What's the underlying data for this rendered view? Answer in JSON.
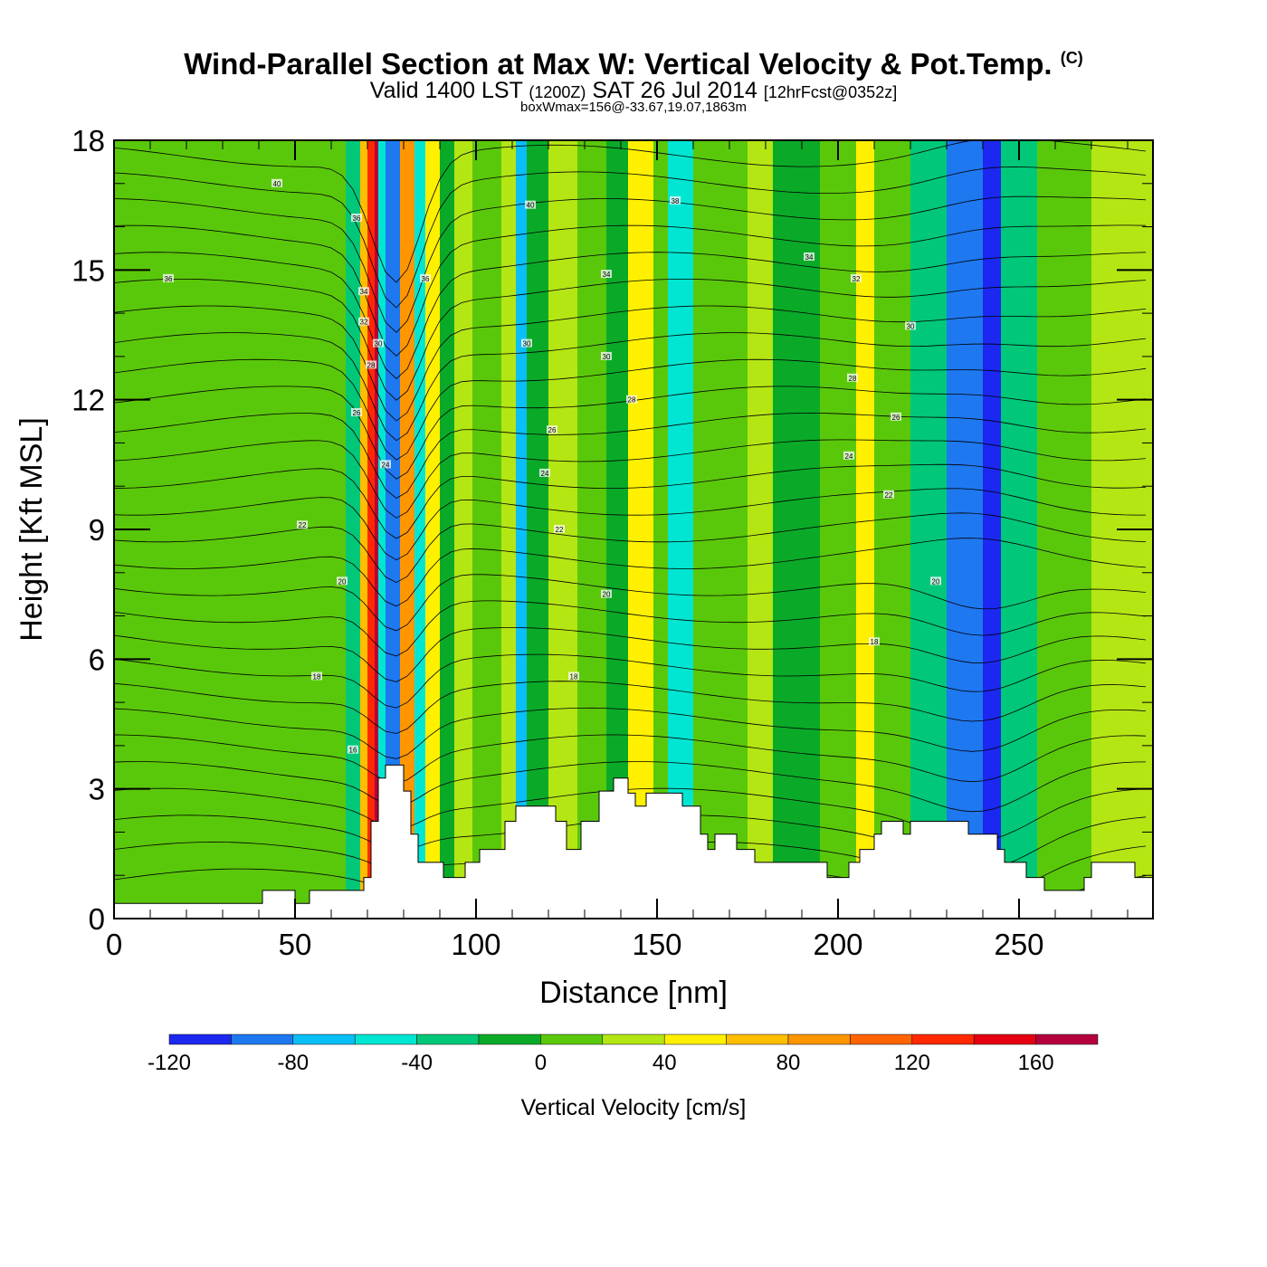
{
  "header": {
    "title": "Wind-Parallel Section at Max W: Vertical Velocity & Pot.Temp.",
    "title_mark": "(C)",
    "subtitle_valid": "Valid 1400 LST",
    "subtitle_z": "(1200Z)",
    "subtitle_date": "SAT 26 Jul 2014",
    "subtitle_fcst": "[12hrFcst@0352z]",
    "box_info": "boxWmax=156@-33.67,19.07,1863m"
  },
  "chart_data": {
    "type": "heatmap",
    "xlabel": "Distance [nm]",
    "ylabel": "Height [Kft MSL]",
    "xlim": [
      0,
      287
    ],
    "ylim": [
      0,
      18
    ],
    "x_ticks": [
      0,
      50,
      100,
      150,
      200,
      250
    ],
    "y_ticks": [
      0,
      3,
      6,
      9,
      12,
      15,
      18
    ],
    "colorbar": {
      "title": "Vertical Velocity [cm/s]",
      "levels": [
        -120,
        -100,
        -80,
        -60,
        -40,
        -20,
        0,
        20,
        40,
        60,
        80,
        100,
        120,
        140,
        160,
        180
      ],
      "colors": [
        "#1c28f0",
        "#1e78f0",
        "#0abef8",
        "#00e6d2",
        "#00c878",
        "#0aaa28",
        "#5ac80a",
        "#b4e614",
        "#fff000",
        "#ffbe00",
        "#ff9600",
        "#ff6400",
        "#ff2800",
        "#e60012",
        "#b4003c"
      ],
      "labels": [
        -120,
        -80,
        -40,
        0,
        40,
        80,
        120,
        160
      ]
    },
    "velocity_columns": [
      {
        "x": [
          0,
          60
        ],
        "w": 5
      },
      {
        "x": [
          60,
          70
        ],
        "w": 10
      },
      {
        "x": [
          64,
          69
        ],
        "w": -35
      },
      {
        "x": [
          68,
          72
        ],
        "w": 60
      },
      {
        "x": [
          70,
          76
        ],
        "w": 130
      },
      {
        "x": [
          72,
          75
        ],
        "w": 160
      },
      {
        "x": [
          73,
          77
        ],
        "w": -50
      },
      {
        "x": [
          75,
          79
        ],
        "w": -100
      },
      {
        "x": [
          79,
          83
        ],
        "w": 80
      },
      {
        "x": [
          83,
          86
        ],
        "w": -45
      },
      {
        "x": [
          86,
          90
        ],
        "w": 45
      },
      {
        "x": [
          90,
          94
        ],
        "w": -15
      },
      {
        "x": [
          94,
          99
        ],
        "w": 25
      },
      {
        "x": [
          99,
          107
        ],
        "w": 5
      },
      {
        "x": [
          107,
          111
        ],
        "w": 30
      },
      {
        "x": [
          111,
          114
        ],
        "w": -80
      },
      {
        "x": [
          114,
          120
        ],
        "w": -20
      },
      {
        "x": [
          120,
          128
        ],
        "w": 30
      },
      {
        "x": [
          128,
          136
        ],
        "w": 10
      },
      {
        "x": [
          136,
          140
        ],
        "w": -10
      },
      {
        "x": [
          142,
          149
        ],
        "w": 55
      },
      {
        "x": [
          149,
          153
        ],
        "w": 10
      },
      {
        "x": [
          153,
          160
        ],
        "w": -45
      },
      {
        "x": [
          160,
          175
        ],
        "w": 5
      },
      {
        "x": [
          175,
          182
        ],
        "w": 25
      },
      {
        "x": [
          182,
          195
        ],
        "w": -5
      },
      {
        "x": [
          195,
          205
        ],
        "w": 15
      },
      {
        "x": [
          205,
          210
        ],
        "w": 45
      },
      {
        "x": [
          210,
          220
        ],
        "w": 0
      },
      {
        "x": [
          220,
          230
        ],
        "w": -40
      },
      {
        "x": [
          230,
          240
        ],
        "w": -90
      },
      {
        "x": [
          240,
          245
        ],
        "w": -115
      },
      {
        "x": [
          245,
          255
        ],
        "w": -30
      },
      {
        "x": [
          255,
          270
        ],
        "w": 5
      },
      {
        "x": [
          270,
          287
        ],
        "w": 20
      }
    ],
    "terrain": [
      {
        "x": 0,
        "h": 0.35
      },
      {
        "x": 41,
        "h": 0.35
      },
      {
        "x": 41,
        "h": 0.65
      },
      {
        "x": 50,
        "h": 0.65
      },
      {
        "x": 50,
        "h": 0.35
      },
      {
        "x": 54,
        "h": 0.35
      },
      {
        "x": 54,
        "h": 0.65
      },
      {
        "x": 69,
        "h": 0.65
      },
      {
        "x": 69,
        "h": 0.95
      },
      {
        "x": 71,
        "h": 0.95
      },
      {
        "x": 71,
        "h": 2.25
      },
      {
        "x": 73,
        "h": 2.25
      },
      {
        "x": 73,
        "h": 3.25
      },
      {
        "x": 75,
        "h": 3.25
      },
      {
        "x": 75,
        "h": 3.55
      },
      {
        "x": 80,
        "h": 3.55
      },
      {
        "x": 80,
        "h": 2.95
      },
      {
        "x": 82,
        "h": 2.95
      },
      {
        "x": 82,
        "h": 1.95
      },
      {
        "x": 84,
        "h": 1.95
      },
      {
        "x": 84,
        "h": 1.3
      },
      {
        "x": 91,
        "h": 1.3
      },
      {
        "x": 91,
        "h": 0.95
      },
      {
        "x": 97,
        "h": 0.95
      },
      {
        "x": 97,
        "h": 1.3
      },
      {
        "x": 101,
        "h": 1.3
      },
      {
        "x": 101,
        "h": 1.6
      },
      {
        "x": 108,
        "h": 1.6
      },
      {
        "x": 108,
        "h": 2.25
      },
      {
        "x": 111,
        "h": 2.25
      },
      {
        "x": 111,
        "h": 2.6
      },
      {
        "x": 122,
        "h": 2.6
      },
      {
        "x": 122,
        "h": 2.25
      },
      {
        "x": 125,
        "h": 2.25
      },
      {
        "x": 125,
        "h": 1.6
      },
      {
        "x": 129,
        "h": 1.6
      },
      {
        "x": 129,
        "h": 2.25
      },
      {
        "x": 134,
        "h": 2.25
      },
      {
        "x": 134,
        "h": 2.95
      },
      {
        "x": 138,
        "h": 2.95
      },
      {
        "x": 138,
        "h": 3.25
      },
      {
        "x": 142,
        "h": 3.25
      },
      {
        "x": 142,
        "h": 2.9
      },
      {
        "x": 144,
        "h": 2.9
      },
      {
        "x": 144,
        "h": 2.6
      },
      {
        "x": 147,
        "h": 2.6
      },
      {
        "x": 147,
        "h": 2.9
      },
      {
        "x": 157,
        "h": 2.9
      },
      {
        "x": 157,
        "h": 2.6
      },
      {
        "x": 162,
        "h": 2.6
      },
      {
        "x": 162,
        "h": 1.95
      },
      {
        "x": 164,
        "h": 1.95
      },
      {
        "x": 164,
        "h": 1.6
      },
      {
        "x": 166,
        "h": 1.6
      },
      {
        "x": 166,
        "h": 1.95
      },
      {
        "x": 172,
        "h": 1.95
      },
      {
        "x": 172,
        "h": 1.6
      },
      {
        "x": 177,
        "h": 1.6
      },
      {
        "x": 177,
        "h": 1.3
      },
      {
        "x": 197,
        "h": 1.3
      },
      {
        "x": 197,
        "h": 0.95
      },
      {
        "x": 203,
        "h": 0.95
      },
      {
        "x": 203,
        "h": 1.3
      },
      {
        "x": 206,
        "h": 1.3
      },
      {
        "x": 206,
        "h": 1.6
      },
      {
        "x": 210,
        "h": 1.6
      },
      {
        "x": 210,
        "h": 1.95
      },
      {
        "x": 212,
        "h": 1.95
      },
      {
        "x": 212,
        "h": 2.25
      },
      {
        "x": 218,
        "h": 2.25
      },
      {
        "x": 218,
        "h": 1.95
      },
      {
        "x": 220,
        "h": 1.95
      },
      {
        "x": 220,
        "h": 2.25
      },
      {
        "x": 236,
        "h": 2.25
      },
      {
        "x": 236,
        "h": 1.95
      },
      {
        "x": 244,
        "h": 1.95
      },
      {
        "x": 244,
        "h": 1.6
      },
      {
        "x": 246,
        "h": 1.6
      },
      {
        "x": 246,
        "h": 1.3
      },
      {
        "x": 252,
        "h": 1.3
      },
      {
        "x": 252,
        "h": 0.95
      },
      {
        "x": 257,
        "h": 0.95
      },
      {
        "x": 257,
        "h": 0.65
      },
      {
        "x": 268,
        "h": 0.65
      },
      {
        "x": 268,
        "h": 0.95
      },
      {
        "x": 270,
        "h": 0.95
      },
      {
        "x": 270,
        "h": 1.3
      },
      {
        "x": 282,
        "h": 1.3
      },
      {
        "x": 282,
        "h": 0.95
      },
      {
        "x": 287,
        "h": 0.95
      }
    ],
    "contour_labels": [
      {
        "x": 45,
        "y": 17.0,
        "t": "40"
      },
      {
        "x": 15,
        "y": 14.8,
        "t": "36"
      },
      {
        "x": 67,
        "y": 16.2,
        "t": "36"
      },
      {
        "x": 69,
        "y": 14.5,
        "t": "34"
      },
      {
        "x": 69,
        "y": 13.8,
        "t": "32"
      },
      {
        "x": 73,
        "y": 13.3,
        "t": "30"
      },
      {
        "x": 71,
        "y": 12.8,
        "t": "28"
      },
      {
        "x": 67,
        "y": 11.7,
        "t": "26"
      },
      {
        "x": 75,
        "y": 10.5,
        "t": "24"
      },
      {
        "x": 52,
        "y": 9.1,
        "t": "22"
      },
      {
        "x": 63,
        "y": 7.8,
        "t": "20"
      },
      {
        "x": 56,
        "y": 5.6,
        "t": "18"
      },
      {
        "x": 66,
        "y": 3.9,
        "t": "16"
      },
      {
        "x": 115,
        "y": 16.5,
        "t": "40"
      },
      {
        "x": 86,
        "y": 14.8,
        "t": "36"
      },
      {
        "x": 114,
        "y": 13.3,
        "t": "30"
      },
      {
        "x": 121,
        "y": 11.3,
        "t": "26"
      },
      {
        "x": 119,
        "y": 10.3,
        "t": "24"
      },
      {
        "x": 123,
        "y": 9.0,
        "t": "22"
      },
      {
        "x": 136,
        "y": 7.5,
        "t": "20"
      },
      {
        "x": 127,
        "y": 5.6,
        "t": "18"
      },
      {
        "x": 136,
        "y": 14.9,
        "t": "34"
      },
      {
        "x": 136,
        "y": 13.0,
        "t": "30"
      },
      {
        "x": 143,
        "y": 12.0,
        "t": "28"
      },
      {
        "x": 155,
        "y": 16.6,
        "t": "38"
      },
      {
        "x": 192,
        "y": 15.3,
        "t": "34"
      },
      {
        "x": 205,
        "y": 14.8,
        "t": "32"
      },
      {
        "x": 220,
        "y": 13.7,
        "t": "30"
      },
      {
        "x": 204,
        "y": 12.5,
        "t": "28"
      },
      {
        "x": 216,
        "y": 11.6,
        "t": "26"
      },
      {
        "x": 203,
        "y": 10.7,
        "t": "24"
      },
      {
        "x": 214,
        "y": 9.8,
        "t": "22"
      },
      {
        "x": 227,
        "y": 7.8,
        "t": "20"
      },
      {
        "x": 210,
        "y": 6.4,
        "t": "18"
      }
    ]
  }
}
